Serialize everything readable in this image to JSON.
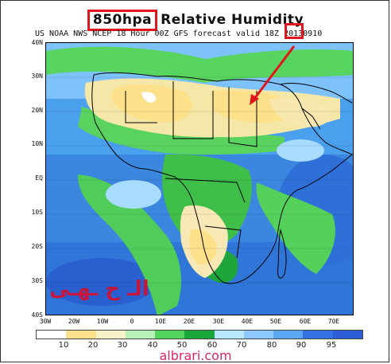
{
  "title": {
    "level": "850hpa",
    "variable": "Relative Humidity"
  },
  "subtitle": "US NOAA NWS NCEP 18 Hour 00Z GFS forecast valid 18Z 20130910",
  "axes": {
    "lat_labels": [
      "40N",
      "30N",
      "20N",
      "10N",
      "EQ",
      "10S",
      "20S",
      "30S",
      "40S"
    ],
    "lon_labels": [
      "30W",
      "20W",
      "10W",
      "0",
      "10E",
      "20E",
      "30E",
      "40E",
      "50E",
      "60E",
      "70E"
    ]
  },
  "watermark_arabic": "الـ ح ـهـى",
  "colorbar": {
    "labels": [
      "10",
      "20",
      "30",
      "40",
      "50",
      "60",
      "70",
      "80",
      "90",
      "95"
    ],
    "colors": [
      "#ffffff",
      "#fde08a",
      "#f8f2c8",
      "#b8f0b8",
      "#55d45c",
      "#1aa83a",
      "#b8e6ff",
      "#8ac8ff",
      "#5aa8f4",
      "#3370e2",
      "#2c5fd6"
    ]
  },
  "footer_site": "albrari.com",
  "annotation_colors": {
    "highlight_box": "#e0161d",
    "arrow": "#e0161d"
  }
}
